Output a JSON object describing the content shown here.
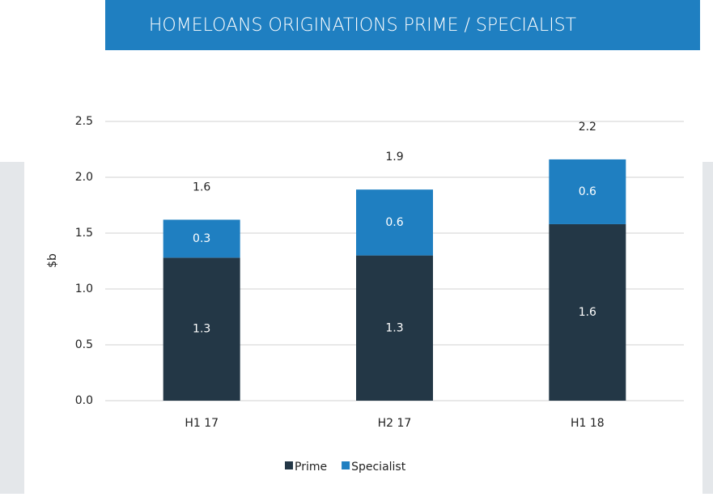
{
  "chart_data": {
    "type": "stacked_bar",
    "title": "HOMELOANS ORIGINATIONS PRIME / SPECIALIST",
    "y_label": "$b",
    "categories": [
      "H1 17",
      "H2 17",
      "H1 18"
    ],
    "series": [
      {
        "name": "Prime",
        "color": "#233746",
        "values": [
          1.28,
          1.3,
          1.58
        ],
        "value_labels": [
          "1.3",
          "1.3",
          "1.6"
        ]
      },
      {
        "name": "Specialist",
        "color": "#1f7fc1",
        "values": [
          0.34,
          0.59,
          0.58
        ],
        "value_labels": [
          "0.3",
          "0.6",
          "0.6"
        ]
      }
    ],
    "totals": [
      1.62,
      1.89,
      2.16
    ],
    "total_labels": [
      "1.6",
      "1.9",
      "2.2"
    ],
    "ylim": [
      0,
      2.5
    ],
    "yticks": [
      {
        "value": 0,
        "label": "0.0"
      },
      {
        "value": 0.5,
        "label": "0.5"
      },
      {
        "value": 1,
        "label": "1.0"
      },
      {
        "value": 1.5,
        "label": "1.5"
      },
      {
        "value": 2,
        "label": "2.0"
      },
      {
        "value": 2.5,
        "label": "2.5"
      }
    ],
    "grid": true,
    "legend": "bottom"
  }
}
